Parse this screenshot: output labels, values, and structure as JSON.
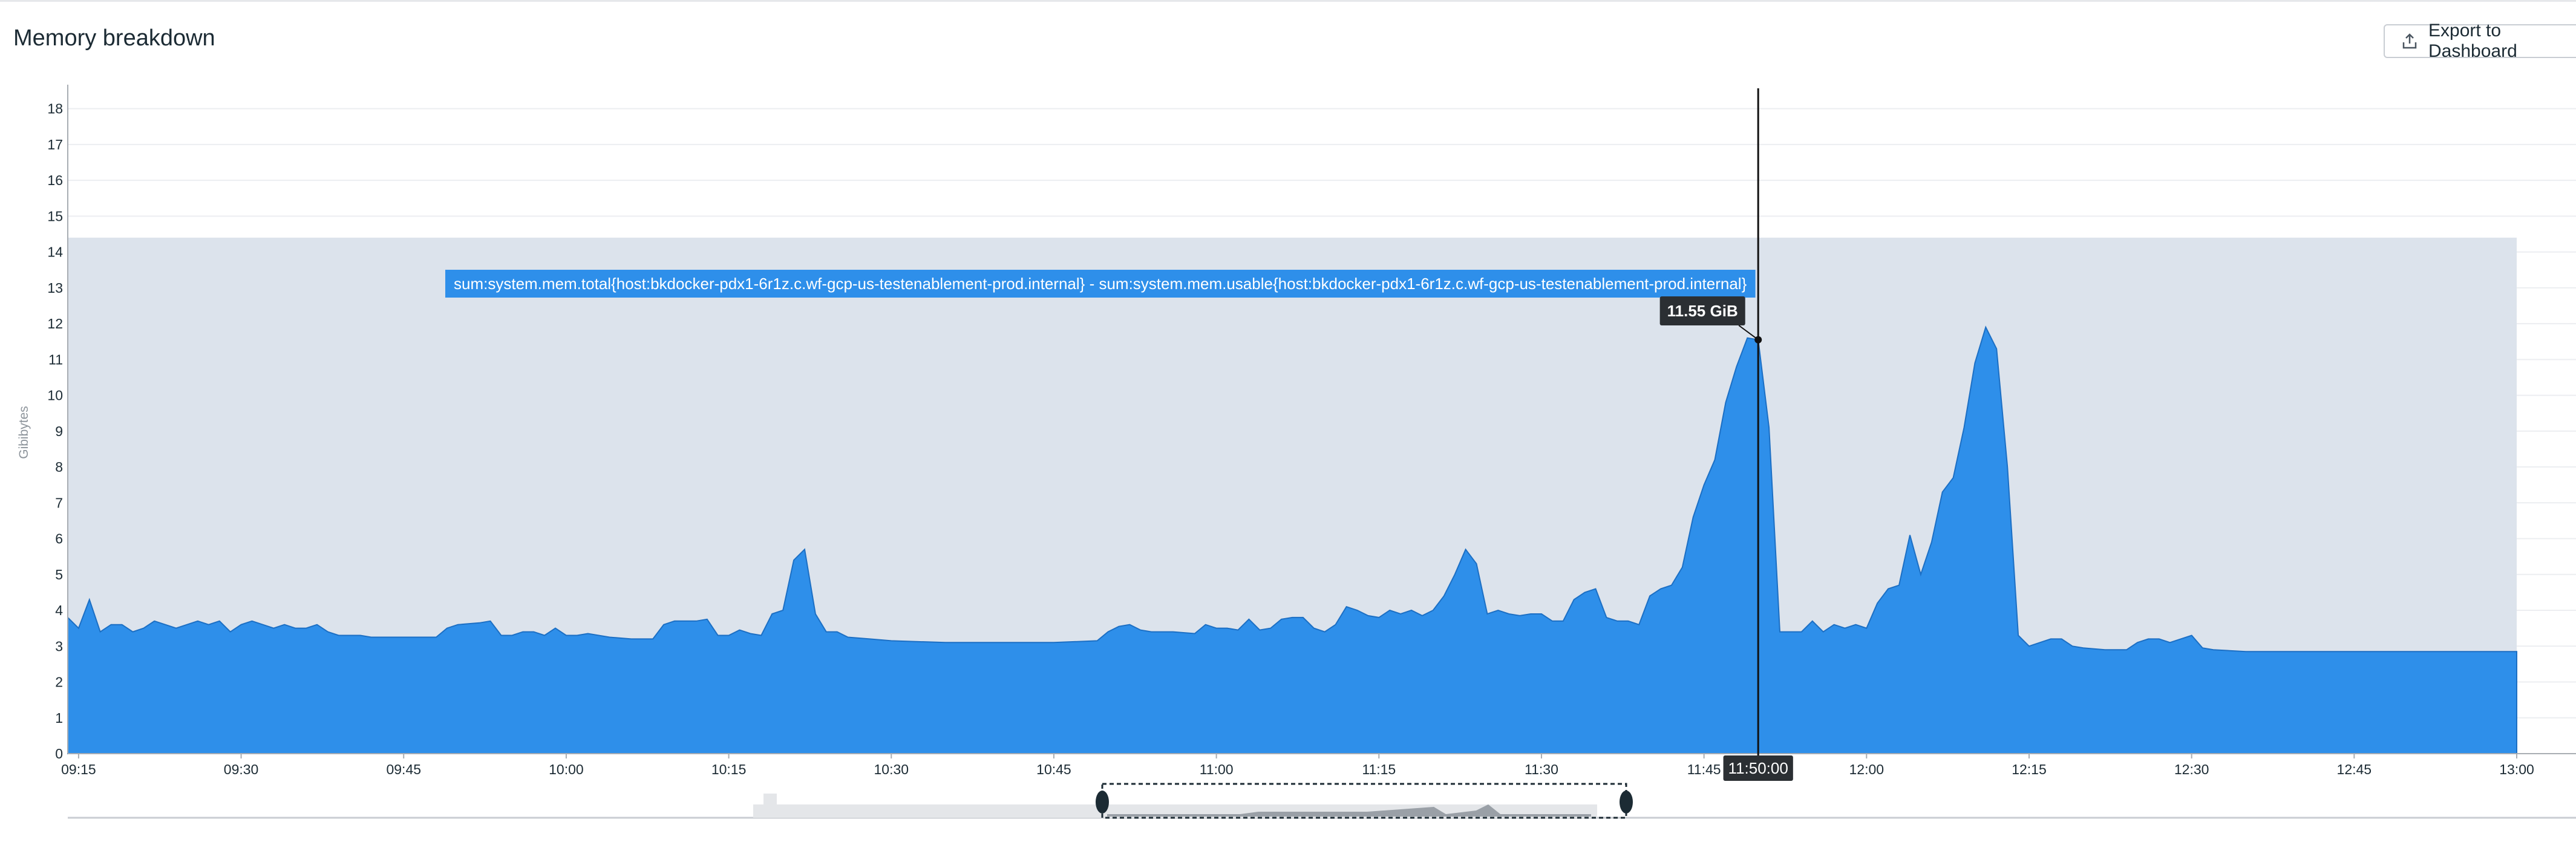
{
  "header": {
    "title": "Memory breakdown",
    "export_label": "Export to Dashboard",
    "export_icon": "upload-icon"
  },
  "chart_data": {
    "type": "area",
    "ylabel": "Gibibytes",
    "ylim": [
      0,
      18.5
    ],
    "y_ticks": [
      "0",
      "1",
      "2",
      "3",
      "4",
      "5",
      "6",
      "7",
      "8",
      "9",
      "10",
      "11",
      "12",
      "13",
      "14",
      "15",
      "16",
      "17",
      "18"
    ],
    "x_ticks": [
      "09:15",
      "09:30",
      "09:45",
      "10:00",
      "10:15",
      "10:30",
      "10:45",
      "11:00",
      "11:15",
      "11:30",
      "11:45",
      "12:00",
      "12:15",
      "12:30",
      "12:45",
      "13:00"
    ],
    "x_range": [
      "09:14",
      "13:00"
    ],
    "grid": true,
    "series": [
      {
        "name": "sum:system.mem.total{host:bkdocker-pdx1-6r1z.c.wf-gcp-us-testenablement-prod.internal} - sum:system.mem.usable{host:bkdocker-pdx1-6r1z.c.wf-gcp-us-testenablement-prod.internal}",
        "color": "#2e8fea",
        "points": [
          [
            "09:14",
            3.8
          ],
          [
            "09:15",
            3.5
          ],
          [
            "09:16",
            4.3
          ],
          [
            "09:17",
            3.4
          ],
          [
            "09:18",
            3.6
          ],
          [
            "09:19",
            3.6
          ],
          [
            "09:20",
            3.4
          ],
          [
            "09:21",
            3.5
          ],
          [
            "09:22",
            3.7
          ],
          [
            "09:23",
            3.6
          ],
          [
            "09:24",
            3.5
          ],
          [
            "09:25",
            3.6
          ],
          [
            "09:26",
            3.7
          ],
          [
            "09:27",
            3.6
          ],
          [
            "09:28",
            3.7
          ],
          [
            "09:29",
            3.4
          ],
          [
            "09:30",
            3.6
          ],
          [
            "09:31",
            3.7
          ],
          [
            "09:32",
            3.6
          ],
          [
            "09:33",
            3.5
          ],
          [
            "09:34",
            3.6
          ],
          [
            "09:35",
            3.5
          ],
          [
            "09:36",
            3.5
          ],
          [
            "09:37",
            3.6
          ],
          [
            "09:38",
            3.4
          ],
          [
            "09:39",
            3.3
          ],
          [
            "09:40",
            3.3
          ],
          [
            "09:41",
            3.3
          ],
          [
            "09:42",
            3.25
          ],
          [
            "09:44",
            3.25
          ],
          [
            "09:46",
            3.25
          ],
          [
            "09:48",
            3.25
          ],
          [
            "09:49",
            3.5
          ],
          [
            "09:50",
            3.6
          ],
          [
            "09:52",
            3.65
          ],
          [
            "09:53",
            3.7
          ],
          [
            "09:54",
            3.3
          ],
          [
            "09:55",
            3.3
          ],
          [
            "09:56",
            3.4
          ],
          [
            "09:57",
            3.4
          ],
          [
            "09:58",
            3.3
          ],
          [
            "09:59",
            3.5
          ],
          [
            "10:00",
            3.3
          ],
          [
            "10:01",
            3.3
          ],
          [
            "10:02",
            3.35
          ],
          [
            "10:04",
            3.25
          ],
          [
            "10:06",
            3.2
          ],
          [
            "10:08",
            3.2
          ],
          [
            "10:09",
            3.6
          ],
          [
            "10:10",
            3.7
          ],
          [
            "10:12",
            3.7
          ],
          [
            "10:13",
            3.75
          ],
          [
            "10:14",
            3.3
          ],
          [
            "10:15",
            3.3
          ],
          [
            "10:16",
            3.45
          ],
          [
            "10:17",
            3.35
          ],
          [
            "10:18",
            3.3
          ],
          [
            "10:19",
            3.9
          ],
          [
            "10:20",
            4.0
          ],
          [
            "10:21",
            5.4
          ],
          [
            "10:22",
            5.7
          ],
          [
            "10:23",
            3.9
          ],
          [
            "10:24",
            3.4
          ],
          [
            "10:25",
            3.4
          ],
          [
            "10:26",
            3.25
          ],
          [
            "10:28",
            3.2
          ],
          [
            "10:30",
            3.15
          ],
          [
            "10:35",
            3.1
          ],
          [
            "10:40",
            3.1
          ],
          [
            "10:45",
            3.1
          ],
          [
            "10:49",
            3.15
          ],
          [
            "10:50",
            3.4
          ],
          [
            "10:51",
            3.55
          ],
          [
            "10:52",
            3.6
          ],
          [
            "10:53",
            3.45
          ],
          [
            "10:54",
            3.4
          ],
          [
            "10:56",
            3.4
          ],
          [
            "10:58",
            3.35
          ],
          [
            "10:59",
            3.6
          ],
          [
            "11:00",
            3.5
          ],
          [
            "11:01",
            3.5
          ],
          [
            "11:02",
            3.45
          ],
          [
            "11:03",
            3.75
          ],
          [
            "11:04",
            3.45
          ],
          [
            "11:05",
            3.5
          ],
          [
            "11:06",
            3.75
          ],
          [
            "11:07",
            3.8
          ],
          [
            "11:08",
            3.8
          ],
          [
            "11:09",
            3.5
          ],
          [
            "11:10",
            3.4
          ],
          [
            "11:11",
            3.6
          ],
          [
            "11:12",
            4.1
          ],
          [
            "11:13",
            4.0
          ],
          [
            "11:14",
            3.85
          ],
          [
            "11:15",
            3.8
          ],
          [
            "11:16",
            4.0
          ],
          [
            "11:17",
            3.9
          ],
          [
            "11:18",
            4.0
          ],
          [
            "11:19",
            3.85
          ],
          [
            "11:20",
            4.0
          ],
          [
            "11:21",
            4.4
          ],
          [
            "11:22",
            5.0
          ],
          [
            "11:23",
            5.7
          ],
          [
            "11:24",
            5.3
          ],
          [
            "11:25",
            3.9
          ],
          [
            "11:26",
            4.0
          ],
          [
            "11:27",
            3.9
          ],
          [
            "11:28",
            3.85
          ],
          [
            "11:29",
            3.9
          ],
          [
            "11:30",
            3.9
          ],
          [
            "11:31",
            3.7
          ],
          [
            "11:32",
            3.7
          ],
          [
            "11:33",
            4.3
          ],
          [
            "11:34",
            4.5
          ],
          [
            "11:35",
            4.6
          ],
          [
            "11:36",
            3.8
          ],
          [
            "11:37",
            3.7
          ],
          [
            "11:38",
            3.7
          ],
          [
            "11:39",
            3.6
          ],
          [
            "11:40",
            4.4
          ],
          [
            "11:41",
            4.6
          ],
          [
            "11:42",
            4.7
          ],
          [
            "11:43",
            5.2
          ],
          [
            "11:44",
            6.6
          ],
          [
            "11:45",
            7.5
          ],
          [
            "11:46",
            8.2
          ],
          [
            "11:47",
            9.8
          ],
          [
            "11:48",
            10.8
          ],
          [
            "11:49",
            11.6
          ],
          [
            "11:50",
            11.55
          ],
          [
            "11:51",
            9.1
          ],
          [
            "11:52",
            3.4
          ],
          [
            "11:53",
            3.4
          ],
          [
            "11:54",
            3.4
          ],
          [
            "11:55",
            3.7
          ],
          [
            "11:56",
            3.4
          ],
          [
            "11:57",
            3.6
          ],
          [
            "11:58",
            3.5
          ],
          [
            "11:59",
            3.6
          ],
          [
            "12:00",
            3.5
          ],
          [
            "12:01",
            4.2
          ],
          [
            "12:02",
            4.6
          ],
          [
            "12:03",
            4.7
          ],
          [
            "12:04",
            6.1
          ],
          [
            "12:05",
            5.0
          ],
          [
            "12:06",
            5.9
          ],
          [
            "12:07",
            7.3
          ],
          [
            "12:08",
            7.7
          ],
          [
            "12:09",
            9.1
          ],
          [
            "12:10",
            10.9
          ],
          [
            "12:11",
            11.9
          ],
          [
            "12:12",
            11.3
          ],
          [
            "12:13",
            8.0
          ],
          [
            "12:14",
            3.3
          ],
          [
            "12:15",
            3.0
          ],
          [
            "12:16",
            3.1
          ],
          [
            "12:17",
            3.2
          ],
          [
            "12:18",
            3.2
          ],
          [
            "12:19",
            3.0
          ],
          [
            "12:20",
            2.95
          ],
          [
            "12:22",
            2.9
          ],
          [
            "12:24",
            2.9
          ],
          [
            "12:25",
            3.1
          ],
          [
            "12:26",
            3.2
          ],
          [
            "12:27",
            3.2
          ],
          [
            "12:28",
            3.1
          ],
          [
            "12:29",
            3.2
          ],
          [
            "12:30",
            3.3
          ],
          [
            "12:31",
            2.95
          ],
          [
            "12:32",
            2.9
          ],
          [
            "12:35",
            2.85
          ],
          [
            "12:40",
            2.85
          ],
          [
            "12:45",
            2.85
          ],
          [
            "12:50",
            2.85
          ],
          [
            "12:55",
            2.85
          ],
          [
            "13:00",
            2.85
          ]
        ]
      }
    ],
    "highlight_band": {
      "y_from": 0,
      "y_to": 14.4,
      "x_from": "09:14",
      "x_to": "13:00"
    },
    "hover": {
      "time": "11:50",
      "time_label": "11:50:00",
      "value": 11.55,
      "value_label": "11.55 GiB"
    }
  },
  "navigator": {
    "selection_from": "10:45",
    "selection_to": "12:05"
  }
}
